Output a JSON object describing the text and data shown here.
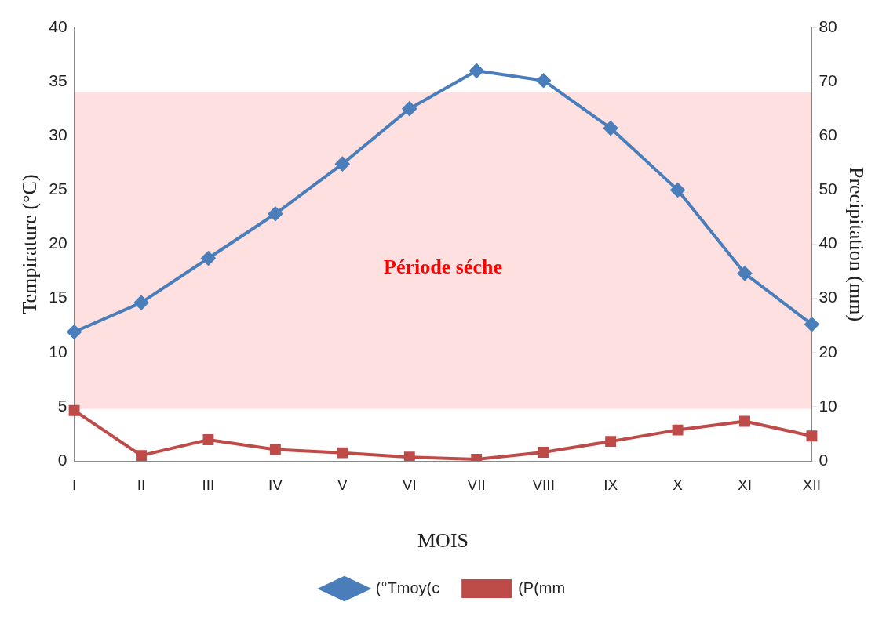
{
  "chart_data": {
    "type": "line",
    "xlabel": "MOIS",
    "ylabel": "Tempirature (°C)",
    "y2label": "Precipitation (mm)",
    "categories": [
      "I",
      "II",
      "III",
      "IV",
      "V",
      "VI",
      "VII",
      "VIII",
      "IX",
      "X",
      "XI",
      "XII"
    ],
    "series": [
      {
        "name": "(°Tmoy(c",
        "color": "#4a7ebb",
        "marker": "diamond",
        "values": [
          11.9,
          14.6,
          18.7,
          22.8,
          27.4,
          32.5,
          36.0,
          35.1,
          30.7,
          25.0,
          17.3,
          12.6
        ]
      },
      {
        "name": "(P(mm",
        "color": "#be4b48",
        "marker": "square",
        "axis": "y2",
        "values": [
          9.3,
          1.0,
          3.9,
          2.1,
          1.5,
          0.7,
          0.3,
          1.6,
          3.6,
          5.7,
          7.3,
          4.6
        ]
      }
    ],
    "ylim": [
      0,
      40
    ],
    "yticks": [
      0,
      5,
      10,
      15,
      20,
      25,
      30,
      35,
      40
    ],
    "y2lim": [
      0,
      80
    ],
    "y2ticks": [
      0,
      10,
      20,
      30,
      40,
      50,
      60,
      70,
      80
    ],
    "bands": [
      {
        "axis": "x",
        "from": "I",
        "to": "XII",
        "label": "Période séche",
        "color": "#ff0000"
      }
    ],
    "grid": false,
    "legend": "bottom"
  }
}
